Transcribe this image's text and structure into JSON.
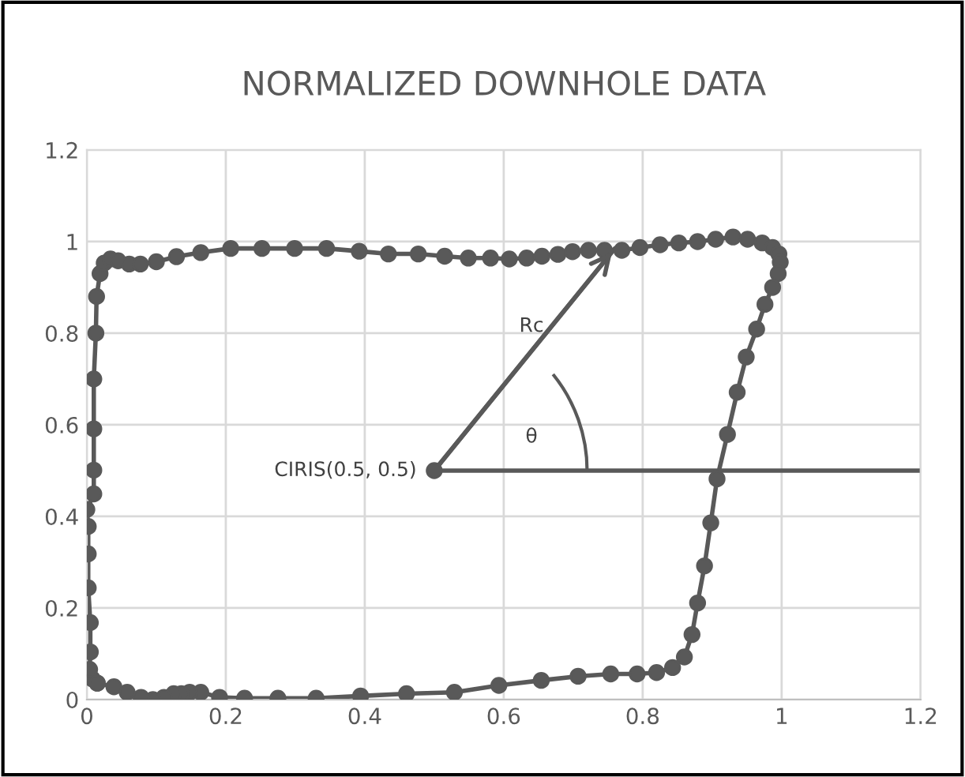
{
  "chart_data": {
    "type": "line",
    "title": "NORMALIZED DOWNHOLE DATA",
    "xlim": [
      0,
      1.2
    ],
    "xticks": [
      0,
      0.2,
      0.4,
      0.6,
      0.8,
      1,
      1.2
    ],
    "ylim": [
      0,
      1.2
    ],
    "yticks": [
      0,
      0.2,
      0.4,
      0.6,
      0.8,
      1,
      1.2
    ],
    "grid": true,
    "series": [
      {
        "type": "scatter",
        "line_style": "solid",
        "color": "#595959",
        "marker": "circle",
        "x": [
          0.015,
          0.008,
          0.004,
          0.005,
          0.005,
          0.002,
          0.002,
          0.002,
          0.0,
          0.01,
          0.01,
          0.01,
          0.01,
          0.013,
          0.014,
          0.019,
          0.025,
          0.034,
          0.045,
          0.061,
          0.077,
          0.1,
          0.129,
          0.164,
          0.207,
          0.252,
          0.299,
          0.345,
          0.392,
          0.434,
          0.477,
          0.515,
          0.549,
          0.581,
          0.608,
          0.633,
          0.655,
          0.678,
          0.699,
          0.722,
          0.745,
          0.77,
          0.796,
          0.825,
          0.852,
          0.879,
          0.905,
          0.93,
          0.951,
          0.972,
          0.987,
          0.996,
          0.998,
          0.995,
          0.987,
          0.976,
          0.964,
          0.949,
          0.936,
          0.922,
          0.907,
          0.898,
          0.889,
          0.879,
          0.871,
          0.86,
          0.843,
          0.82,
          0.792,
          0.754,
          0.707,
          0.654,
          0.593,
          0.529,
          0.46,
          0.394,
          0.33,
          0.275,
          0.227,
          0.191,
          0.164,
          0.148,
          0.136,
          0.125,
          0.111,
          0.095,
          0.078,
          0.058,
          0.039,
          0.015
        ],
        "values": [
          0.036,
          0.045,
          0.066,
          0.104,
          0.168,
          0.244,
          0.318,
          0.378,
          0.415,
          0.449,
          0.501,
          0.591,
          0.7,
          0.8,
          0.88,
          0.93,
          0.953,
          0.962,
          0.958,
          0.951,
          0.951,
          0.956,
          0.967,
          0.976,
          0.985,
          0.985,
          0.985,
          0.985,
          0.979,
          0.973,
          0.973,
          0.968,
          0.964,
          0.964,
          0.962,
          0.964,
          0.968,
          0.972,
          0.978,
          0.981,
          0.981,
          0.981,
          0.987,
          0.993,
          0.997,
          1.0,
          1.005,
          1.01,
          1.005,
          0.997,
          0.987,
          0.973,
          0.955,
          0.93,
          0.9,
          0.863,
          0.809,
          0.748,
          0.671,
          0.579,
          0.482,
          0.386,
          0.292,
          0.211,
          0.142,
          0.093,
          0.07,
          0.059,
          0.056,
          0.056,
          0.051,
          0.042,
          0.031,
          0.016,
          0.013,
          0.008,
          0.003,
          0.003,
          0.003,
          0.005,
          0.016,
          0.016,
          0.013,
          0.013,
          0.005,
          0.0,
          0.005,
          0.016,
          0.028,
          0.036
        ]
      },
      {
        "color": "#595959",
        "marker": "none",
        "x": [
          0.5,
          1.2
        ],
        "values": [
          0.5,
          0.5
        ]
      },
      {
        "color": "#595959",
        "marker": "none",
        "x": [
          0.5,
          0.76
        ],
        "values": [
          0.5,
          0.985
        ]
      },
      {
        "type": "scatter",
        "color": "#595959",
        "marker": "circle",
        "x": [
          0.5
        ],
        "values": [
          0.5
        ]
      }
    ],
    "annotations": [
      {
        "text": "CIRIS(0.5, 0.5)",
        "x": 0.5,
        "y": 0.5
      },
      "Rc",
      "θ"
    ]
  }
}
